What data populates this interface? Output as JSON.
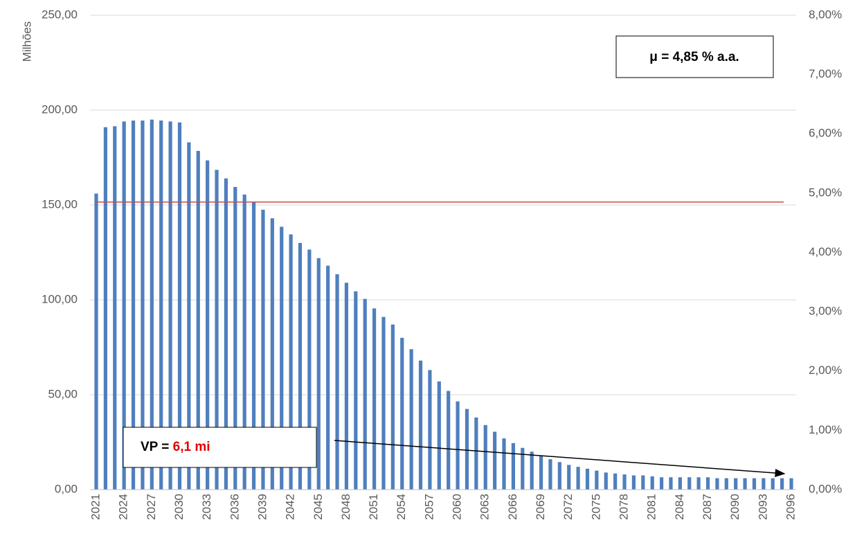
{
  "chart_data": {
    "type": "bar",
    "y_label": "Milhões",
    "categories": [
      "2021",
      null,
      null,
      "2024",
      null,
      null,
      "2027",
      null,
      null,
      "2030",
      null,
      null,
      "2033",
      null,
      null,
      "2036",
      null,
      null,
      "2039",
      null,
      null,
      "2042",
      null,
      null,
      "2045",
      null,
      null,
      "2048",
      null,
      null,
      "2051",
      null,
      null,
      "2054",
      null,
      null,
      "2057",
      null,
      null,
      "2060",
      null,
      null,
      "2063",
      null,
      null,
      "2066",
      null,
      null,
      "2069",
      null,
      null,
      "2072",
      null,
      null,
      "2075",
      null,
      null,
      "2078",
      null,
      null,
      "2081",
      null,
      null,
      "2084",
      null,
      null,
      "2087",
      null,
      null,
      "2090",
      null,
      null,
      "2093",
      null,
      null,
      "2096"
    ],
    "values": [
      156,
      191,
      191.5,
      194,
      194.5,
      194.5,
      195,
      194.5,
      194,
      193.5,
      183,
      178.5,
      173.5,
      168.5,
      164,
      159.5,
      155.5,
      151.5,
      147.5,
      143,
      138.5,
      134.5,
      130,
      126.5,
      122,
      118,
      113.5,
      109,
      104.5,
      100.5,
      95.5,
      91,
      87,
      80,
      74,
      68,
      63,
      57,
      52,
      46.5,
      42.5,
      38,
      34,
      30.5,
      27,
      24.5,
      22,
      20,
      18,
      16,
      14.5,
      13,
      12,
      11,
      10,
      9,
      8.5,
      8,
      7.5,
      7.5,
      7,
      6.5,
      6.5,
      6.5,
      6.5,
      6.5,
      6.5,
      6,
      6,
      6,
      6,
      6,
      6,
      6,
      6,
      6
    ],
    "color": "#4f7fbd",
    "ylim": [
      0,
      250
    ],
    "yticks": [
      {
        "value": 0,
        "label": "0,00"
      },
      {
        "value": 50,
        "label": "50,00"
      },
      {
        "value": 100,
        "label": "100,00"
      },
      {
        "value": 150,
        "label": "150,00"
      },
      {
        "value": 200,
        "label": "200,00"
      },
      {
        "value": 250,
        "label": "250,00"
      }
    ],
    "y2lim": [
      0,
      8
    ],
    "y2ticks": [
      {
        "value": 0,
        "label": "0,00%"
      },
      {
        "value": 1,
        "label": "1,00%"
      },
      {
        "value": 2,
        "label": "2,00%"
      },
      {
        "value": 3,
        "label": "3,00%"
      },
      {
        "value": 4,
        "label": "4,00%"
      },
      {
        "value": 5,
        "label": "5,00%"
      },
      {
        "value": 6,
        "label": "6,00%"
      },
      {
        "value": 7,
        "label": "7,00%"
      },
      {
        "value": 8,
        "label": "8,00%"
      }
    ],
    "grid": true,
    "reference_line": {
      "value": 4.85,
      "axis": "y2",
      "color": "#c0504d"
    },
    "annotations": {
      "mu": "μ = 4,85 % a.a.",
      "vp_label": "VP = ",
      "vp_value": "6,1 mi"
    }
  }
}
